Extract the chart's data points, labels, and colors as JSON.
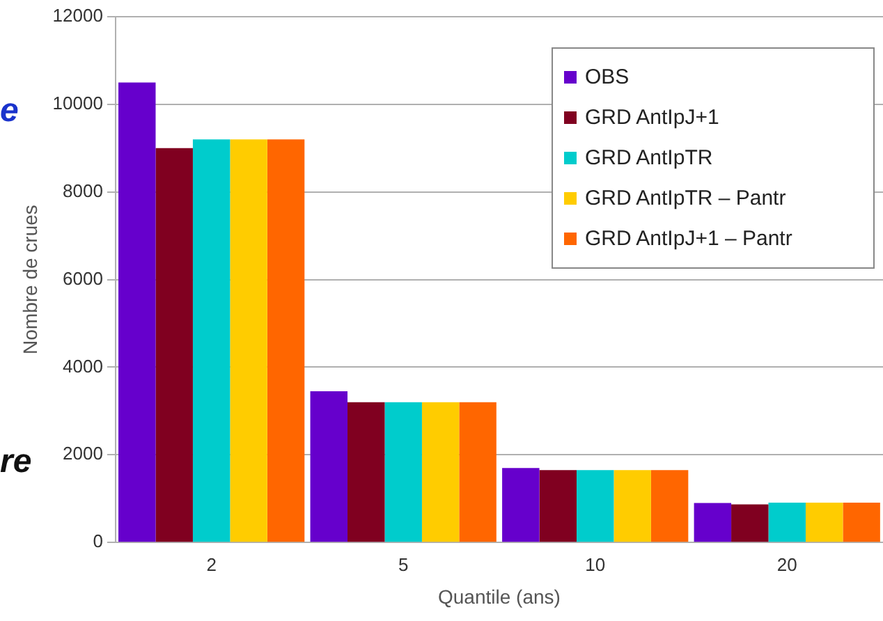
{
  "chart_data": {
    "type": "bar",
    "xlabel": "Quantile (ans)",
    "ylabel": "Nombre de crues",
    "categories": [
      "2",
      "5",
      "10",
      "20"
    ],
    "series": [
      {
        "name": "OBS",
        "color": "#6600cc",
        "values": [
          10500,
          3450,
          1700,
          900
        ]
      },
      {
        "name": "GRD AntIpJ+1",
        "color": "#800020",
        "values": [
          9000,
          3200,
          1650,
          870
        ]
      },
      {
        "name": "GRD AntIpTR",
        "color": "#00cccc",
        "values": [
          9200,
          3200,
          1650,
          910
        ]
      },
      {
        "name": "GRD AntIpTR – Pantr",
        "color": "#ffcc00",
        "values": [
          9200,
          3200,
          1650,
          910
        ]
      },
      {
        "name": "GRD AntIpJ+1 – Pantr",
        "color": "#ff6600",
        "values": [
          9200,
          3200,
          1650,
          910
        ]
      }
    ],
    "ylim": [
      0,
      12000
    ],
    "yticks": [
      0,
      2000,
      4000,
      6000,
      8000,
      10000,
      12000
    ],
    "grid": "y",
    "legend": "top right",
    "annotations": [
      "e",
      "re"
    ]
  }
}
